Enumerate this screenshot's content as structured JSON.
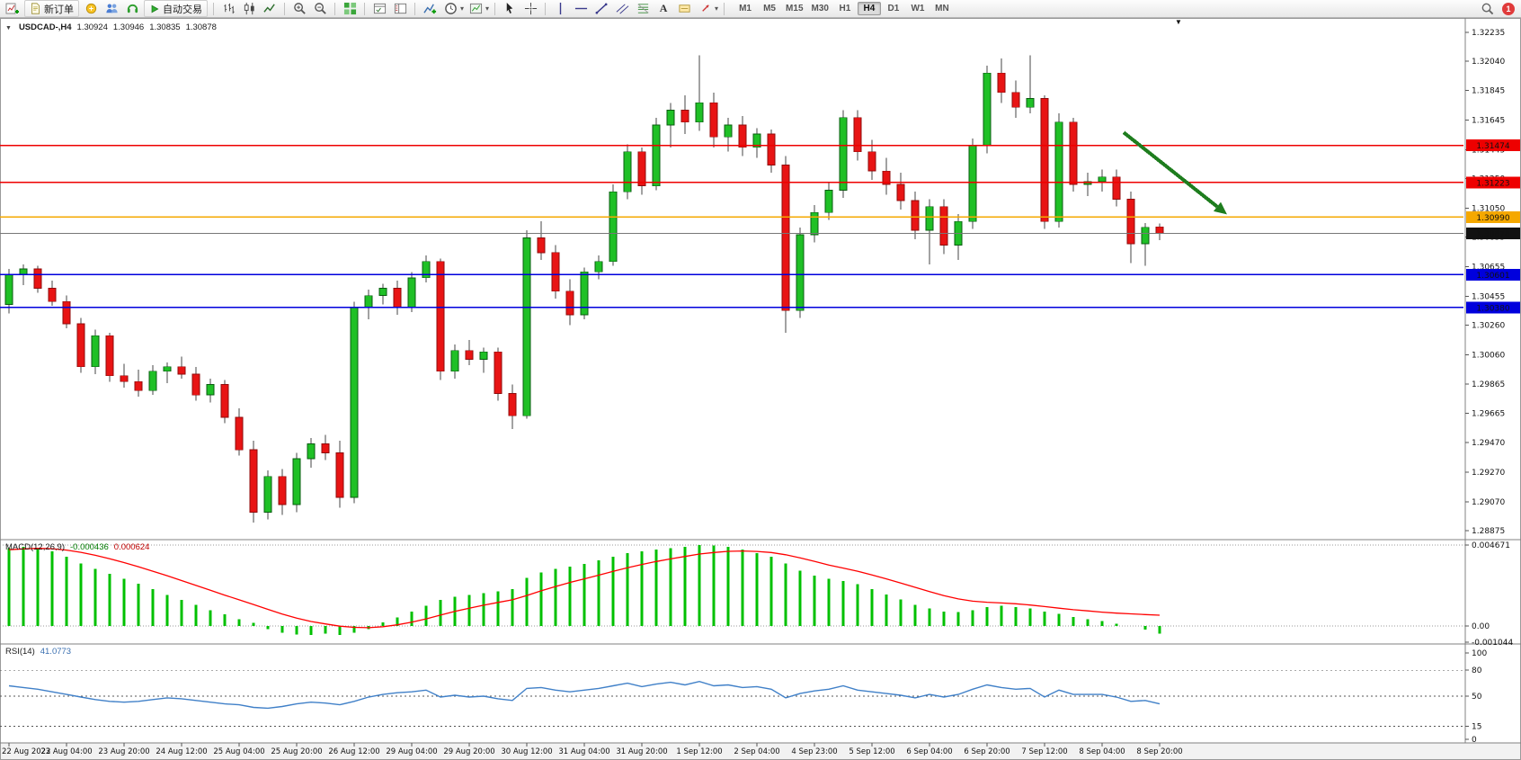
{
  "toolbar": {
    "new_order_label": "新订单",
    "auto_trading_label": "自动交易",
    "timeframes": [
      "M1",
      "M5",
      "M15",
      "M30",
      "H1",
      "H4",
      "D1",
      "W1",
      "MN"
    ],
    "active_timeframe": "H4",
    "notification_count": "1"
  },
  "chart": {
    "symbol_period": "USDCAD-,H4",
    "open": "1.30924",
    "high": "1.30946",
    "low": "1.30835",
    "close": "1.30878",
    "macd_label": "MACD(12,26,9)",
    "macd_value": "-0.000436",
    "macd_signal_value": "0.000624",
    "rsi_label": "RSI(14)",
    "rsi_value": "41.0773"
  },
  "chart_data": {
    "type": "candlestick",
    "symbol": "USDCAD",
    "period": "H4",
    "current_bar": {
      "open": 1.30924,
      "high": 1.30946,
      "low": 1.30835,
      "close": 1.30878
    },
    "up_color": "#1fc026",
    "down_color": "#e81414",
    "price_axis": {
      "max": 1.32235,
      "min": 1.28875,
      "ticks": [
        "1.32235",
        "1.32040",
        "1.31845",
        "1.31645",
        "1.31445",
        "1.31250",
        "1.31050",
        "1.30855",
        "1.30655",
        "1.30455",
        "1.30260",
        "1.30060",
        "1.29865",
        "1.29665",
        "1.29470",
        "1.29270",
        "1.29070",
        "1.28875"
      ]
    },
    "time_labels": [
      "22 Aug 2022",
      "23 Aug 04:00",
      "23 Aug 20:00",
      "24 Aug 12:00",
      "25 Aug 04:00",
      "25 Aug 20:00",
      "26 Aug 12:00",
      "29 Aug 04:00",
      "29 Aug 20:00",
      "30 Aug 12:00",
      "31 Aug 04:00",
      "31 Aug 20:00",
      "1 Sep 12:00",
      "2 Sep 04:00",
      "4 Sep 23:00",
      "5 Sep 12:00",
      "6 Sep 04:00",
      "6 Sep 20:00",
      "7 Sep 12:00",
      "8 Sep 04:00",
      "8 Sep 20:00"
    ],
    "bars_per_label": 4,
    "candles": [
      [
        1.304,
        1.3064,
        1.3034,
        1.306
      ],
      [
        1.306,
        1.3067,
        1.3053,
        1.3064
      ],
      [
        1.3064,
        1.3066,
        1.3048,
        1.3051
      ],
      [
        1.3051,
        1.3056,
        1.3039,
        1.3042
      ],
      [
        1.3042,
        1.3046,
        1.3024,
        1.3027
      ],
      [
        1.3027,
        1.3031,
        1.2994,
        1.2998
      ],
      [
        1.2998,
        1.3023,
        1.2993,
        1.3019
      ],
      [
        1.3019,
        1.3021,
        1.2988,
        1.2992
      ],
      [
        1.2992,
        1.3,
        1.2984,
        1.2988
      ],
      [
        1.2988,
        1.2996,
        1.2978,
        1.2982
      ],
      [
        1.2982,
        1.2999,
        1.2979,
        1.2995
      ],
      [
        1.2995,
        1.3001,
        1.2987,
        1.2998
      ],
      [
        1.2998,
        1.3005,
        1.299,
        1.2993
      ],
      [
        1.2993,
        1.2998,
        1.2975,
        1.2979
      ],
      [
        1.2979,
        1.299,
        1.2974,
        1.2986
      ],
      [
        1.2986,
        1.2989,
        1.296,
        1.2964
      ],
      [
        1.2964,
        1.297,
        1.2938,
        1.2942
      ],
      [
        1.2942,
        1.2948,
        1.2893,
        1.29
      ],
      [
        1.29,
        1.2928,
        1.2895,
        1.2924
      ],
      [
        1.2924,
        1.2929,
        1.2898,
        1.2905
      ],
      [
        1.2905,
        1.294,
        1.29,
        1.2936
      ],
      [
        1.2936,
        1.295,
        1.293,
        1.2946
      ],
      [
        1.2946,
        1.2952,
        1.2935,
        1.294
      ],
      [
        1.294,
        1.2948,
        1.2903,
        1.291
      ],
      [
        1.291,
        1.3042,
        1.2906,
        1.3038
      ],
      [
        1.3038,
        1.305,
        1.303,
        1.3046
      ],
      [
        1.3046,
        1.3054,
        1.304,
        1.3051
      ],
      [
        1.3051,
        1.3056,
        1.3033,
        1.3038
      ],
      [
        1.3038,
        1.3062,
        1.3035,
        1.3058
      ],
      [
        1.3058,
        1.3073,
        1.3055,
        1.3069
      ],
      [
        1.3069,
        1.3071,
        1.2989,
        1.2995
      ],
      [
        1.2995,
        1.3013,
        1.299,
        1.3009
      ],
      [
        1.3009,
        1.3016,
        1.2999,
        1.3003
      ],
      [
        1.3003,
        1.3011,
        1.2994,
        1.3008
      ],
      [
        1.3008,
        1.3011,
        1.2975,
        1.298
      ],
      [
        1.298,
        1.2986,
        1.2956,
        1.2965
      ],
      [
        1.2965,
        1.309,
        1.2963,
        1.3085
      ],
      [
        1.3085,
        1.3096,
        1.307,
        1.3075
      ],
      [
        1.3075,
        1.308,
        1.3044,
        1.3049
      ],
      [
        1.3049,
        1.3057,
        1.3026,
        1.3033
      ],
      [
        1.3033,
        1.3065,
        1.303,
        1.3062
      ],
      [
        1.3062,
        1.3073,
        1.3057,
        1.3069
      ],
      [
        1.3069,
        1.3121,
        1.3066,
        1.3116
      ],
      [
        1.3116,
        1.3148,
        1.3111,
        1.3143
      ],
      [
        1.3143,
        1.3146,
        1.3114,
        1.312
      ],
      [
        1.312,
        1.3166,
        1.3117,
        1.3161
      ],
      [
        1.3161,
        1.3176,
        1.3146,
        1.3171
      ],
      [
        1.3171,
        1.3181,
        1.3155,
        1.3163
      ],
      [
        1.3163,
        1.3208,
        1.3157,
        1.3176
      ],
      [
        1.3176,
        1.3183,
        1.3146,
        1.3153
      ],
      [
        1.3153,
        1.3166,
        1.3143,
        1.3161
      ],
      [
        1.3161,
        1.3167,
        1.314,
        1.3146
      ],
      [
        1.3146,
        1.3159,
        1.3139,
        1.3155
      ],
      [
        1.3155,
        1.3158,
        1.3129,
        1.3134
      ],
      [
        1.3134,
        1.314,
        1.3021,
        1.3036
      ],
      [
        1.3036,
        1.3092,
        1.3031,
        1.3087
      ],
      [
        1.3087,
        1.3107,
        1.3082,
        1.3102
      ],
      [
        1.3102,
        1.3122,
        1.3097,
        1.3117
      ],
      [
        1.3117,
        1.3171,
        1.3112,
        1.3166
      ],
      [
        1.3166,
        1.3171,
        1.3137,
        1.3143
      ],
      [
        1.3143,
        1.3151,
        1.3124,
        1.313
      ],
      [
        1.313,
        1.3139,
        1.3114,
        1.3121
      ],
      [
        1.3121,
        1.3129,
        1.3104,
        1.311
      ],
      [
        1.311,
        1.3116,
        1.3084,
        1.309
      ],
      [
        1.309,
        1.3111,
        1.3067,
        1.3106
      ],
      [
        1.3106,
        1.3111,
        1.3074,
        1.308
      ],
      [
        1.308,
        1.3101,
        1.307,
        1.3096
      ],
      [
        1.3096,
        1.3152,
        1.3091,
        1.3147
      ],
      [
        1.3147,
        1.3201,
        1.3142,
        1.3196
      ],
      [
        1.3196,
        1.3206,
        1.3176,
        1.3183
      ],
      [
        1.3183,
        1.3191,
        1.3166,
        1.3173
      ],
      [
        1.3173,
        1.3208,
        1.3169,
        1.3179
      ],
      [
        1.3179,
        1.3181,
        1.3091,
        1.3096
      ],
      [
        1.3096,
        1.3169,
        1.3092,
        1.3163
      ],
      [
        1.3163,
        1.3166,
        1.3116,
        1.3121
      ],
      [
        1.3121,
        1.3129,
        1.3113,
        1.3123
      ],
      [
        1.3123,
        1.3131,
        1.3116,
        1.3126
      ],
      [
        1.3126,
        1.3131,
        1.3106,
        1.3111
      ],
      [
        1.3111,
        1.3116,
        1.3068,
        1.3081
      ],
      [
        1.3081,
        1.3095,
        1.3066,
        1.3092
      ],
      [
        1.30924,
        1.30946,
        1.30835,
        1.30878
      ]
    ],
    "hlines": [
      {
        "label": "1.31474",
        "price": 1.31474,
        "line_color": "#ee0000",
        "tag_color": "#ee0000",
        "width": 1.5
      },
      {
        "label": "1.31223",
        "price": 1.31223,
        "line_color": "#ee0000",
        "tag_color": "#ee0000",
        "width": 1.5
      },
      {
        "label": "1.30990",
        "price": 1.3099,
        "line_color": "#f5a800",
        "tag_color": "#f5a800",
        "width": 1.5
      },
      {
        "label": "1.30601",
        "price": 1.30601,
        "line_color": "#0000dd",
        "tag_color": "#0000dd",
        "width": 1.5
      },
      {
        "label": "1.30380",
        "price": 1.3038,
        "line_color": "#0000dd",
        "tag_color": "#0000dd",
        "width": 1.5
      },
      {
        "label": "1.30878",
        "price": 1.30878,
        "line_color": "#777777",
        "tag_color": "#111111",
        "width": 1
      }
    ],
    "trend_arrow": {
      "from_bar": 77.5,
      "from_price": 1.3156,
      "to_bar": 84,
      "to_price": 1.3106,
      "color": "#1e7d1e"
    },
    "macd": {
      "params": "12,26,9",
      "axis_max": 0.004671,
      "axis_min": -0.001044,
      "axis_labels": [
        "0.004671",
        "0.00",
        "-0.001044"
      ],
      "histogram_color": "#00c000",
      "signal_color": "#ff0000",
      "last_main": -0.000436,
      "last_signal": 0.000624,
      "histogram": [
        0.0045,
        0.00458,
        0.00452,
        0.0043,
        0.004,
        0.00362,
        0.0033,
        0.003,
        0.00272,
        0.00243,
        0.00212,
        0.0018,
        0.0015,
        0.00122,
        0.00092,
        0.00068,
        0.0004,
        0.00018,
        -0.00018,
        -0.00038,
        -0.0005,
        -0.00052,
        -0.00044,
        -0.00052,
        -0.00038,
        -0.00018,
        0.0002,
        0.0005,
        0.00082,
        0.00118,
        0.0015,
        0.00168,
        0.0018,
        0.0019,
        0.002,
        0.00212,
        0.00278,
        0.0031,
        0.0033,
        0.00342,
        0.00358,
        0.00378,
        0.004,
        0.0042,
        0.0043,
        0.0044,
        0.0045,
        0.00458,
        0.00467,
        0.00464,
        0.00458,
        0.0044,
        0.0042,
        0.004,
        0.0036,
        0.0032,
        0.0029,
        0.00272,
        0.0026,
        0.00242,
        0.00212,
        0.00182,
        0.00152,
        0.00122,
        0.001,
        0.00082,
        0.0008,
        0.00092,
        0.0011,
        0.00118,
        0.0011,
        0.001,
        0.00082,
        0.0007,
        0.00052,
        0.0004,
        0.00028,
        0.00012,
        0.0,
        -0.0002,
        -0.000436
      ],
      "signal": [
        0.0044,
        0.00445,
        0.00448,
        0.00446,
        0.00438,
        0.00425,
        0.00408,
        0.00388,
        0.00366,
        0.00342,
        0.00316,
        0.0029,
        0.00262,
        0.00234,
        0.00206,
        0.00178,
        0.00151,
        0.00124,
        0.00096,
        0.00069,
        0.00045,
        0.00026,
        0.00012,
        -1e-05,
        -8e-05,
        -0.0001,
        -4e-05,
        7e-05,
        0.00022,
        0.00041,
        0.00063,
        0.00084,
        0.00103,
        0.0012,
        0.00136,
        0.00151,
        0.00176,
        0.00203,
        0.00228,
        0.00251,
        0.00272,
        0.00293,
        0.00315,
        0.00336,
        0.00355,
        0.00372,
        0.00387,
        0.00401,
        0.00415,
        0.00424,
        0.00431,
        0.00433,
        0.0043,
        0.00424,
        0.00411,
        0.00393,
        0.00373,
        0.00352,
        0.00334,
        0.00316,
        0.00295,
        0.00272,
        0.00248,
        0.00223,
        0.00198,
        0.00175,
        0.00156,
        0.00143,
        0.00137,
        0.00133,
        0.00128,
        0.00121,
        0.00112,
        0.00103,
        0.00094,
        0.00087,
        0.0008,
        0.00074,
        0.0007,
        0.00066,
        0.000624
      ]
    },
    "rsi": {
      "period": 14,
      "color": "#4080c8",
      "levels": [
        80,
        50,
        15
      ],
      "axis_ticks": [
        "100",
        "80",
        "50",
        "15",
        "0"
      ],
      "last": 41.0773,
      "values": [
        62,
        60,
        58,
        55,
        52,
        49,
        46,
        44,
        43,
        44,
        46,
        48,
        47,
        45,
        43,
        41,
        40,
        37,
        36,
        38,
        41,
        43,
        42,
        40,
        44,
        49,
        52,
        54,
        55,
        57,
        49,
        51,
        49,
        50,
        47,
        45,
        59,
        60,
        57,
        55,
        57,
        59,
        62,
        65,
        61,
        64,
        66,
        63,
        67,
        62,
        63,
        60,
        61,
        58,
        48,
        53,
        56,
        58,
        62,
        57,
        55,
        53,
        51,
        48,
        52,
        49,
        52,
        58,
        63,
        60,
        58,
        59,
        49,
        57,
        52,
        52,
        52,
        49,
        44,
        45,
        41.0773
      ]
    }
  }
}
